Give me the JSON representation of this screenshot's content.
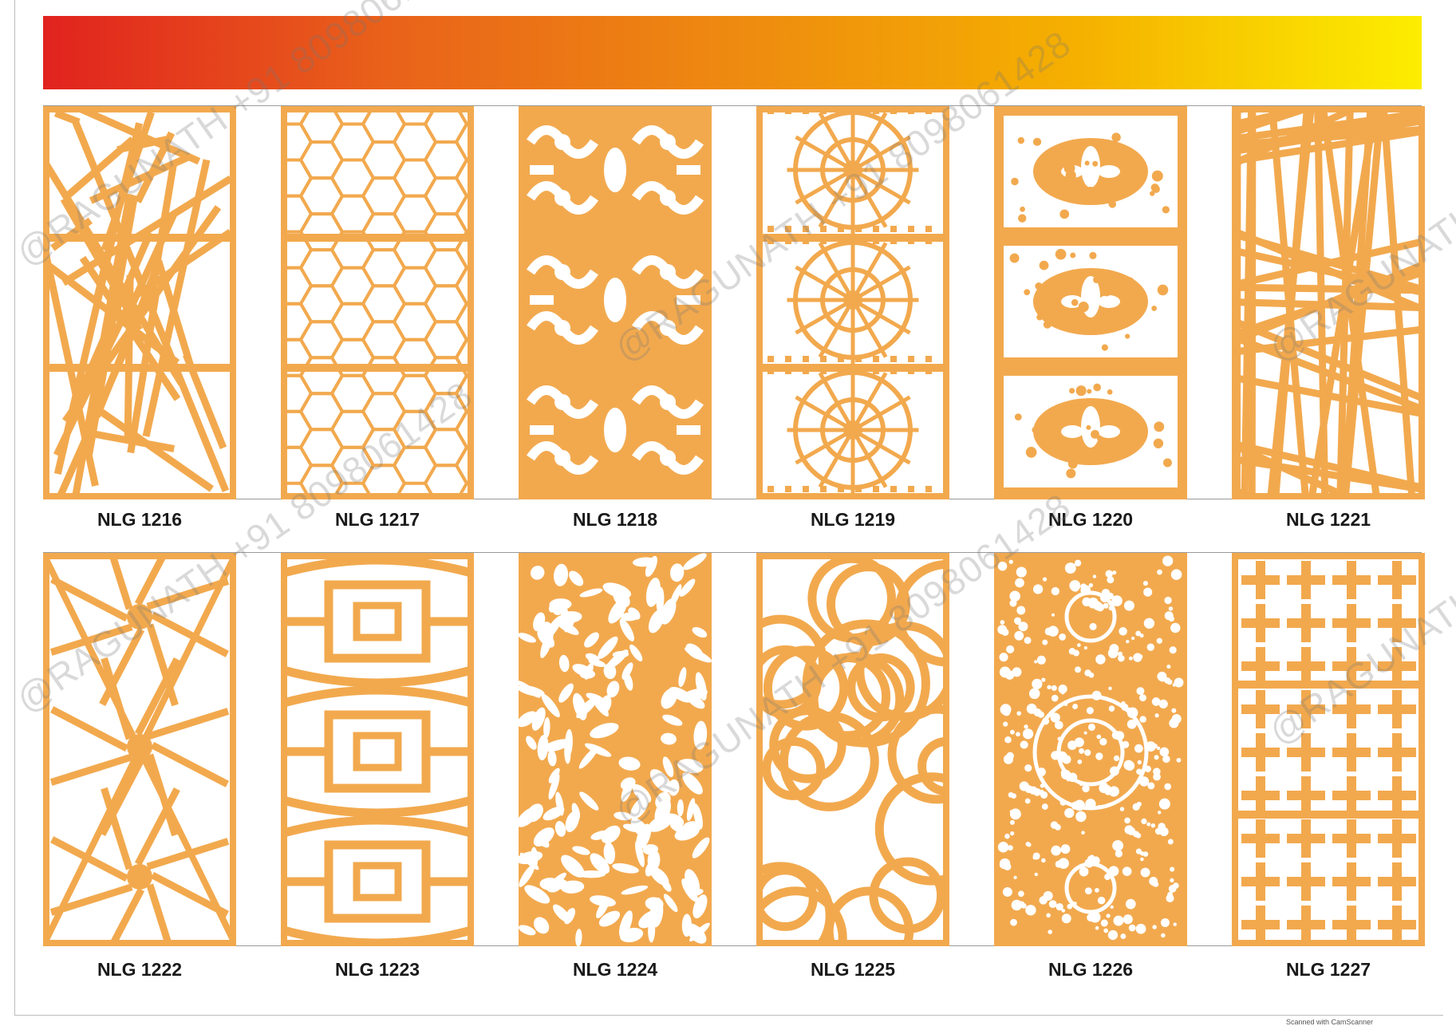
{
  "colors": {
    "panel_fill": "#f2a94e",
    "panel_cut": "#ffffff",
    "banner_start": "#e1231f",
    "banner_end": "#fcee00"
  },
  "panels_row1": [
    {
      "code": "NLG 1216",
      "pattern": "broken-lines"
    },
    {
      "code": "NLG 1217",
      "pattern": "hexagon-lattice"
    },
    {
      "code": "NLG 1218",
      "pattern": "floral-scroll"
    },
    {
      "code": "NLG 1219",
      "pattern": "star-geometric"
    },
    {
      "code": "NLG 1220",
      "pattern": "fleur-de-lis"
    },
    {
      "code": "NLG 1221",
      "pattern": "crossing-lines"
    }
  ],
  "panels_row2": [
    {
      "code": "NLG 1222",
      "pattern": "star-lattice"
    },
    {
      "code": "NLG 1223",
      "pattern": "chinese-lattice"
    },
    {
      "code": "NLG 1224",
      "pattern": "leaves"
    },
    {
      "code": "NLG 1225",
      "pattern": "circles"
    },
    {
      "code": "NLG 1226",
      "pattern": "damask"
    },
    {
      "code": "NLG 1227",
      "pattern": "cross-lattice"
    }
  ],
  "watermark_text": "@RAGUNATH +91 8098061428",
  "footer_note": "Scanned with CamScanner"
}
